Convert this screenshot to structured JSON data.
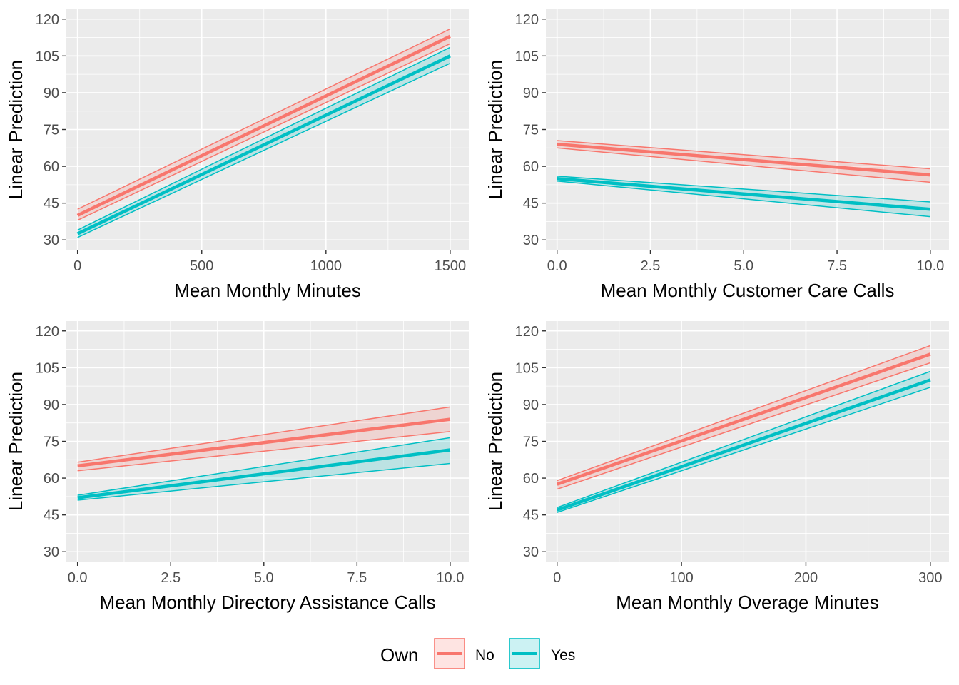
{
  "colors": {
    "No": "#F8766D",
    "Yes": "#00BFC4"
  },
  "legend": {
    "title": "Own",
    "entries": [
      {
        "key": "No",
        "label": "No"
      },
      {
        "key": "Yes",
        "label": "Yes"
      }
    ],
    "position": "bottom"
  },
  "chart_data": [
    {
      "type": "line",
      "xlabel": "Mean Monthly Minutes",
      "ylabel": "Linear Prediction",
      "xlim": [
        -45,
        1575
      ],
      "ylim": [
        26,
        124
      ],
      "xticks": [
        0,
        500,
        1000,
        1500
      ],
      "xtick_labels": [
        "0",
        "500",
        "1000",
        "1500"
      ],
      "yticks": [
        30,
        45,
        60,
        75,
        90,
        105,
        120
      ],
      "ytick_labels": [
        "30",
        "45",
        "60",
        "75",
        "90",
        "105",
        "120"
      ],
      "grid": true,
      "series": [
        {
          "name": "No",
          "x": [
            0,
            1500
          ],
          "fit": [
            40.0,
            113.0
          ],
          "lower": [
            38.0,
            110.0
          ],
          "upper": [
            42.5,
            116.0
          ]
        },
        {
          "name": "Yes",
          "x": [
            0,
            1500
          ],
          "fit": [
            32.5,
            105.0
          ],
          "lower": [
            31.0,
            102.0
          ],
          "upper": [
            34.0,
            108.5
          ]
        }
      ]
    },
    {
      "type": "line",
      "xlabel": "Mean Monthly Customer Care Calls",
      "ylabel": "Linear Prediction",
      "xlim": [
        -0.3,
        10.5
      ],
      "ylim": [
        26,
        124
      ],
      "xticks": [
        0,
        2.5,
        5,
        7.5,
        10
      ],
      "xtick_labels": [
        "0.0",
        "2.5",
        "5.0",
        "7.5",
        "10.0"
      ],
      "yticks": [
        30,
        45,
        60,
        75,
        90,
        105,
        120
      ],
      "ytick_labels": [
        "30",
        "45",
        "60",
        "75",
        "90",
        "105",
        "120"
      ],
      "grid": true,
      "series": [
        {
          "name": "No",
          "x": [
            0,
            10
          ],
          "fit": [
            69.0,
            56.5
          ],
          "lower": [
            67.5,
            53.5
          ],
          "upper": [
            70.5,
            59.0
          ]
        },
        {
          "name": "Yes",
          "x": [
            0,
            10
          ],
          "fit": [
            55.0,
            42.5
          ],
          "lower": [
            54.0,
            39.5
          ],
          "upper": [
            56.0,
            45.5
          ]
        }
      ]
    },
    {
      "type": "line",
      "xlabel": "Mean Monthly Directory Assistance Calls",
      "ylabel": "Linear Prediction",
      "xlim": [
        -0.3,
        10.5
      ],
      "ylim": [
        26,
        124
      ],
      "xticks": [
        0,
        2.5,
        5,
        7.5,
        10
      ],
      "xtick_labels": [
        "0.0",
        "2.5",
        "5.0",
        "7.5",
        "10.0"
      ],
      "yticks": [
        30,
        45,
        60,
        75,
        90,
        105,
        120
      ],
      "ytick_labels": [
        "30",
        "45",
        "60",
        "75",
        "90",
        "105",
        "120"
      ],
      "grid": true,
      "series": [
        {
          "name": "No",
          "x": [
            0,
            10
          ],
          "fit": [
            65.0,
            84.0
          ],
          "lower": [
            63.0,
            79.0
          ],
          "upper": [
            66.5,
            89.0
          ]
        },
        {
          "name": "Yes",
          "x": [
            0,
            10
          ],
          "fit": [
            52.0,
            71.5
          ],
          "lower": [
            51.0,
            66.0
          ],
          "upper": [
            53.0,
            76.5
          ]
        }
      ]
    },
    {
      "type": "line",
      "xlabel": "Mean Monthly Overage Minutes",
      "ylabel": "Linear Prediction",
      "xlim": [
        -9,
        315
      ],
      "ylim": [
        26,
        124
      ],
      "xticks": [
        0,
        100,
        200,
        300
      ],
      "xtick_labels": [
        "0",
        "100",
        "200",
        "300"
      ],
      "yticks": [
        30,
        45,
        60,
        75,
        90,
        105,
        120
      ],
      "ytick_labels": [
        "30",
        "45",
        "60",
        "75",
        "90",
        "105",
        "120"
      ],
      "grid": true,
      "series": [
        {
          "name": "No",
          "x": [
            0,
            300
          ],
          "fit": [
            57.5,
            110.5
          ],
          "lower": [
            55.5,
            107.0
          ],
          "upper": [
            59.0,
            114.0
          ]
        },
        {
          "name": "Yes",
          "x": [
            0,
            300
          ],
          "fit": [
            47.0,
            100.0
          ],
          "lower": [
            46.0,
            97.0
          ],
          "upper": [
            48.0,
            103.5
          ]
        }
      ]
    }
  ]
}
